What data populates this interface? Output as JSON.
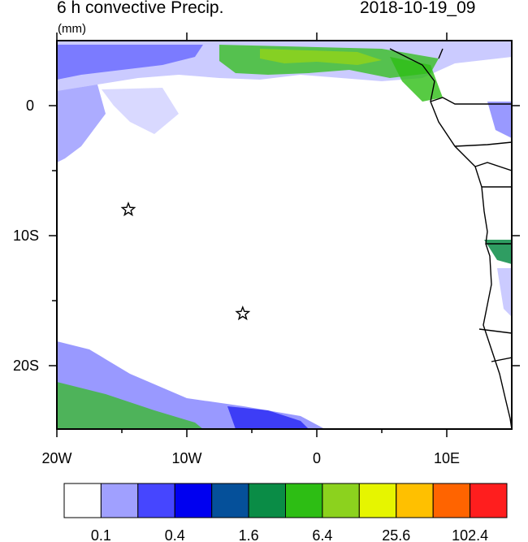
{
  "title": "6 h convective Precip.",
  "datetime": "2018-10-19_09",
  "units": "(mm)",
  "axes": {
    "x_ticks": [
      "20W",
      "10W",
      "0",
      "10E"
    ],
    "y_ticks": [
      "0",
      "10S",
      "20S"
    ]
  },
  "colorbar": {
    "colors": [
      "#ffffff",
      "#a0a0ff",
      "#4646ff",
      "#0000f0",
      "#05509a",
      "#0a8c46",
      "#2dbe14",
      "#8cd21e",
      "#e6f500",
      "#ffc000",
      "#ff6400",
      "#ff1e1e"
    ],
    "labels": [
      "0.1",
      "0.4",
      "1.6",
      "6.4",
      "25.6",
      "102.4"
    ]
  },
  "markers": [
    {
      "name": "star-marker",
      "lon": -14.5,
      "lat": -8.0
    },
    {
      "name": "star-marker",
      "lon": -5.7,
      "lat": -16.0
    }
  ]
}
